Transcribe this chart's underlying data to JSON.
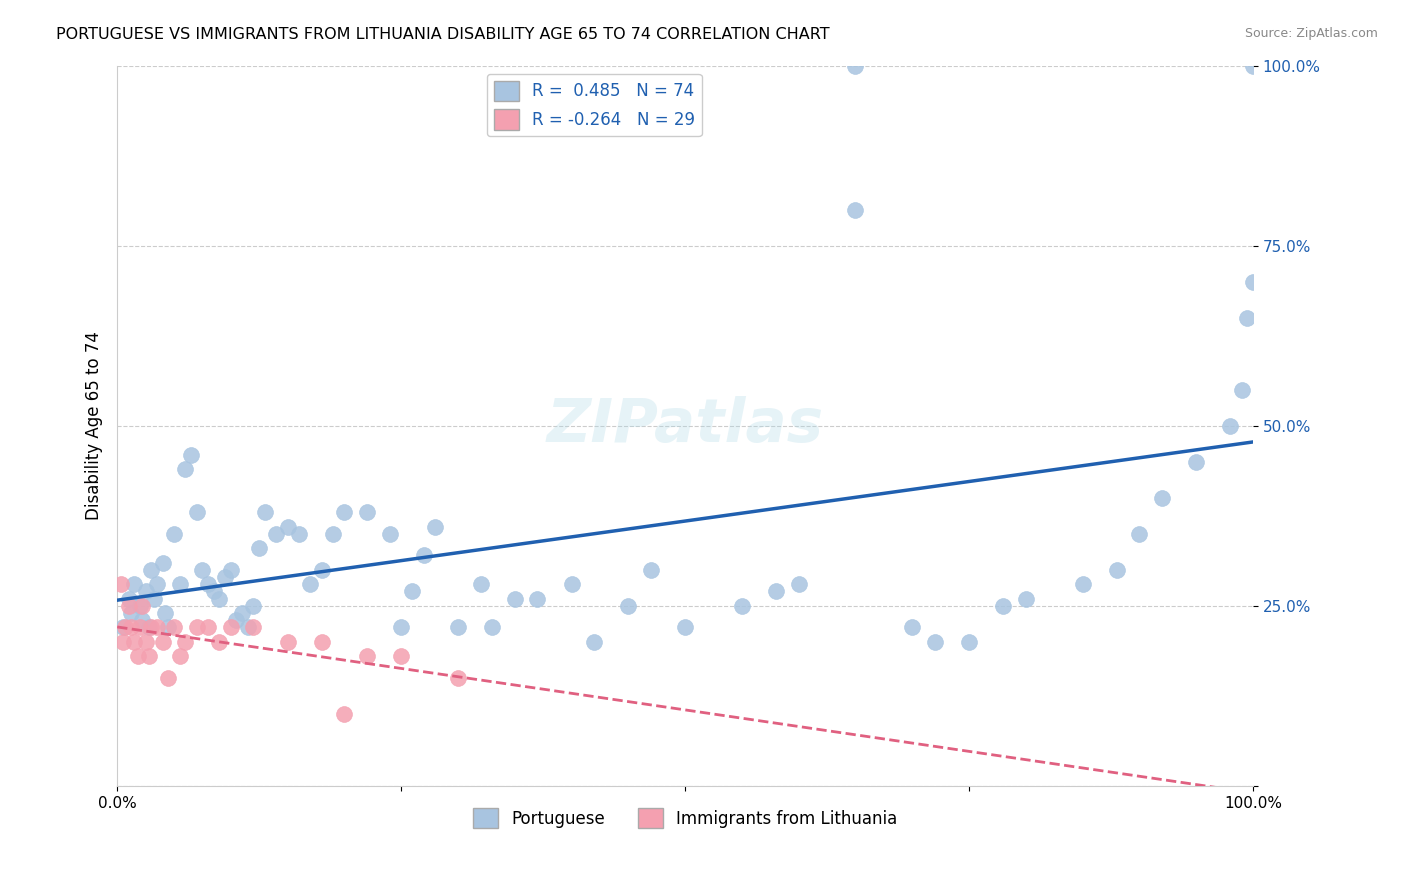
{
  "title": "PORTUGUESE VS IMMIGRANTS FROM LITHUANIA DISABILITY AGE 65 TO 74 CORRELATION CHART",
  "source": "Source: ZipAtlas.com",
  "ylabel": "Disability Age 65 to 74",
  "watermark": "ZIPatlas",
  "blue_R": 0.485,
  "blue_N": 74,
  "pink_R": -0.264,
  "pink_N": 29,
  "blue_color": "#a8c4e0",
  "blue_line_color": "#2060b0",
  "pink_color": "#f4a0b0",
  "pink_line_color": "#e06080",
  "legend_label_blue": "Portuguese",
  "legend_label_pink": "Immigrants from Lithuania",
  "blue_points_x": [
    0.5,
    1.0,
    1.2,
    1.5,
    2.0,
    2.2,
    2.5,
    2.8,
    3.0,
    3.2,
    3.5,
    4.0,
    4.2,
    4.5,
    5.0,
    5.5,
    6.0,
    6.5,
    7.0,
    7.5,
    8.0,
    8.5,
    9.0,
    9.5,
    10.0,
    10.5,
    11.0,
    11.5,
    12.0,
    12.5,
    13.0,
    14.0,
    15.0,
    16.0,
    17.0,
    18.0,
    19.0,
    20.0,
    22.0,
    24.0,
    25.0,
    26.0,
    27.0,
    28.0,
    30.0,
    32.0,
    33.0,
    35.0,
    37.0,
    40.0,
    42.0,
    45.0,
    47.0,
    50.0,
    55.0,
    58.0,
    60.0,
    65.0,
    70.0,
    72.0,
    75.0,
    78.0,
    80.0,
    85.0,
    88.0,
    90.0,
    92.0,
    95.0,
    98.0,
    99.0,
    99.5,
    100.0,
    100.0,
    65.0
  ],
  "blue_points_y": [
    22.0,
    26.0,
    24.0,
    28.0,
    25.0,
    23.0,
    27.0,
    22.0,
    30.0,
    26.0,
    28.0,
    31.0,
    24.0,
    22.0,
    35.0,
    28.0,
    44.0,
    46.0,
    38.0,
    30.0,
    28.0,
    27.0,
    26.0,
    29.0,
    30.0,
    23.0,
    24.0,
    22.0,
    25.0,
    33.0,
    38.0,
    35.0,
    36.0,
    35.0,
    28.0,
    30.0,
    35.0,
    38.0,
    38.0,
    35.0,
    22.0,
    27.0,
    32.0,
    36.0,
    22.0,
    28.0,
    22.0,
    26.0,
    26.0,
    28.0,
    20.0,
    25.0,
    30.0,
    22.0,
    25.0,
    27.0,
    28.0,
    80.0,
    22.0,
    20.0,
    20.0,
    25.0,
    26.0,
    28.0,
    30.0,
    35.0,
    40.0,
    45.0,
    50.0,
    55.0,
    65.0,
    70.0,
    100.0,
    100.0
  ],
  "pink_points_x": [
    0.3,
    0.5,
    0.7,
    1.0,
    1.2,
    1.5,
    1.8,
    2.0,
    2.2,
    2.5,
    2.8,
    3.0,
    3.5,
    4.0,
    4.5,
    5.0,
    5.5,
    6.0,
    7.0,
    8.0,
    9.0,
    10.0,
    12.0,
    15.0,
    18.0,
    20.0,
    22.0,
    25.0,
    30.0
  ],
  "pink_points_y": [
    28.0,
    20.0,
    22.0,
    25.0,
    22.0,
    20.0,
    18.0,
    22.0,
    25.0,
    20.0,
    18.0,
    22.0,
    22.0,
    20.0,
    15.0,
    22.0,
    18.0,
    20.0,
    22.0,
    22.0,
    20.0,
    22.0,
    22.0,
    20.0,
    20.0,
    10.0,
    18.0,
    18.0,
    15.0
  ],
  "xmin": 0,
  "xmax": 100,
  "ymin": 0,
  "ymax": 100,
  "background_color": "#ffffff",
  "grid_color": "#cccccc"
}
